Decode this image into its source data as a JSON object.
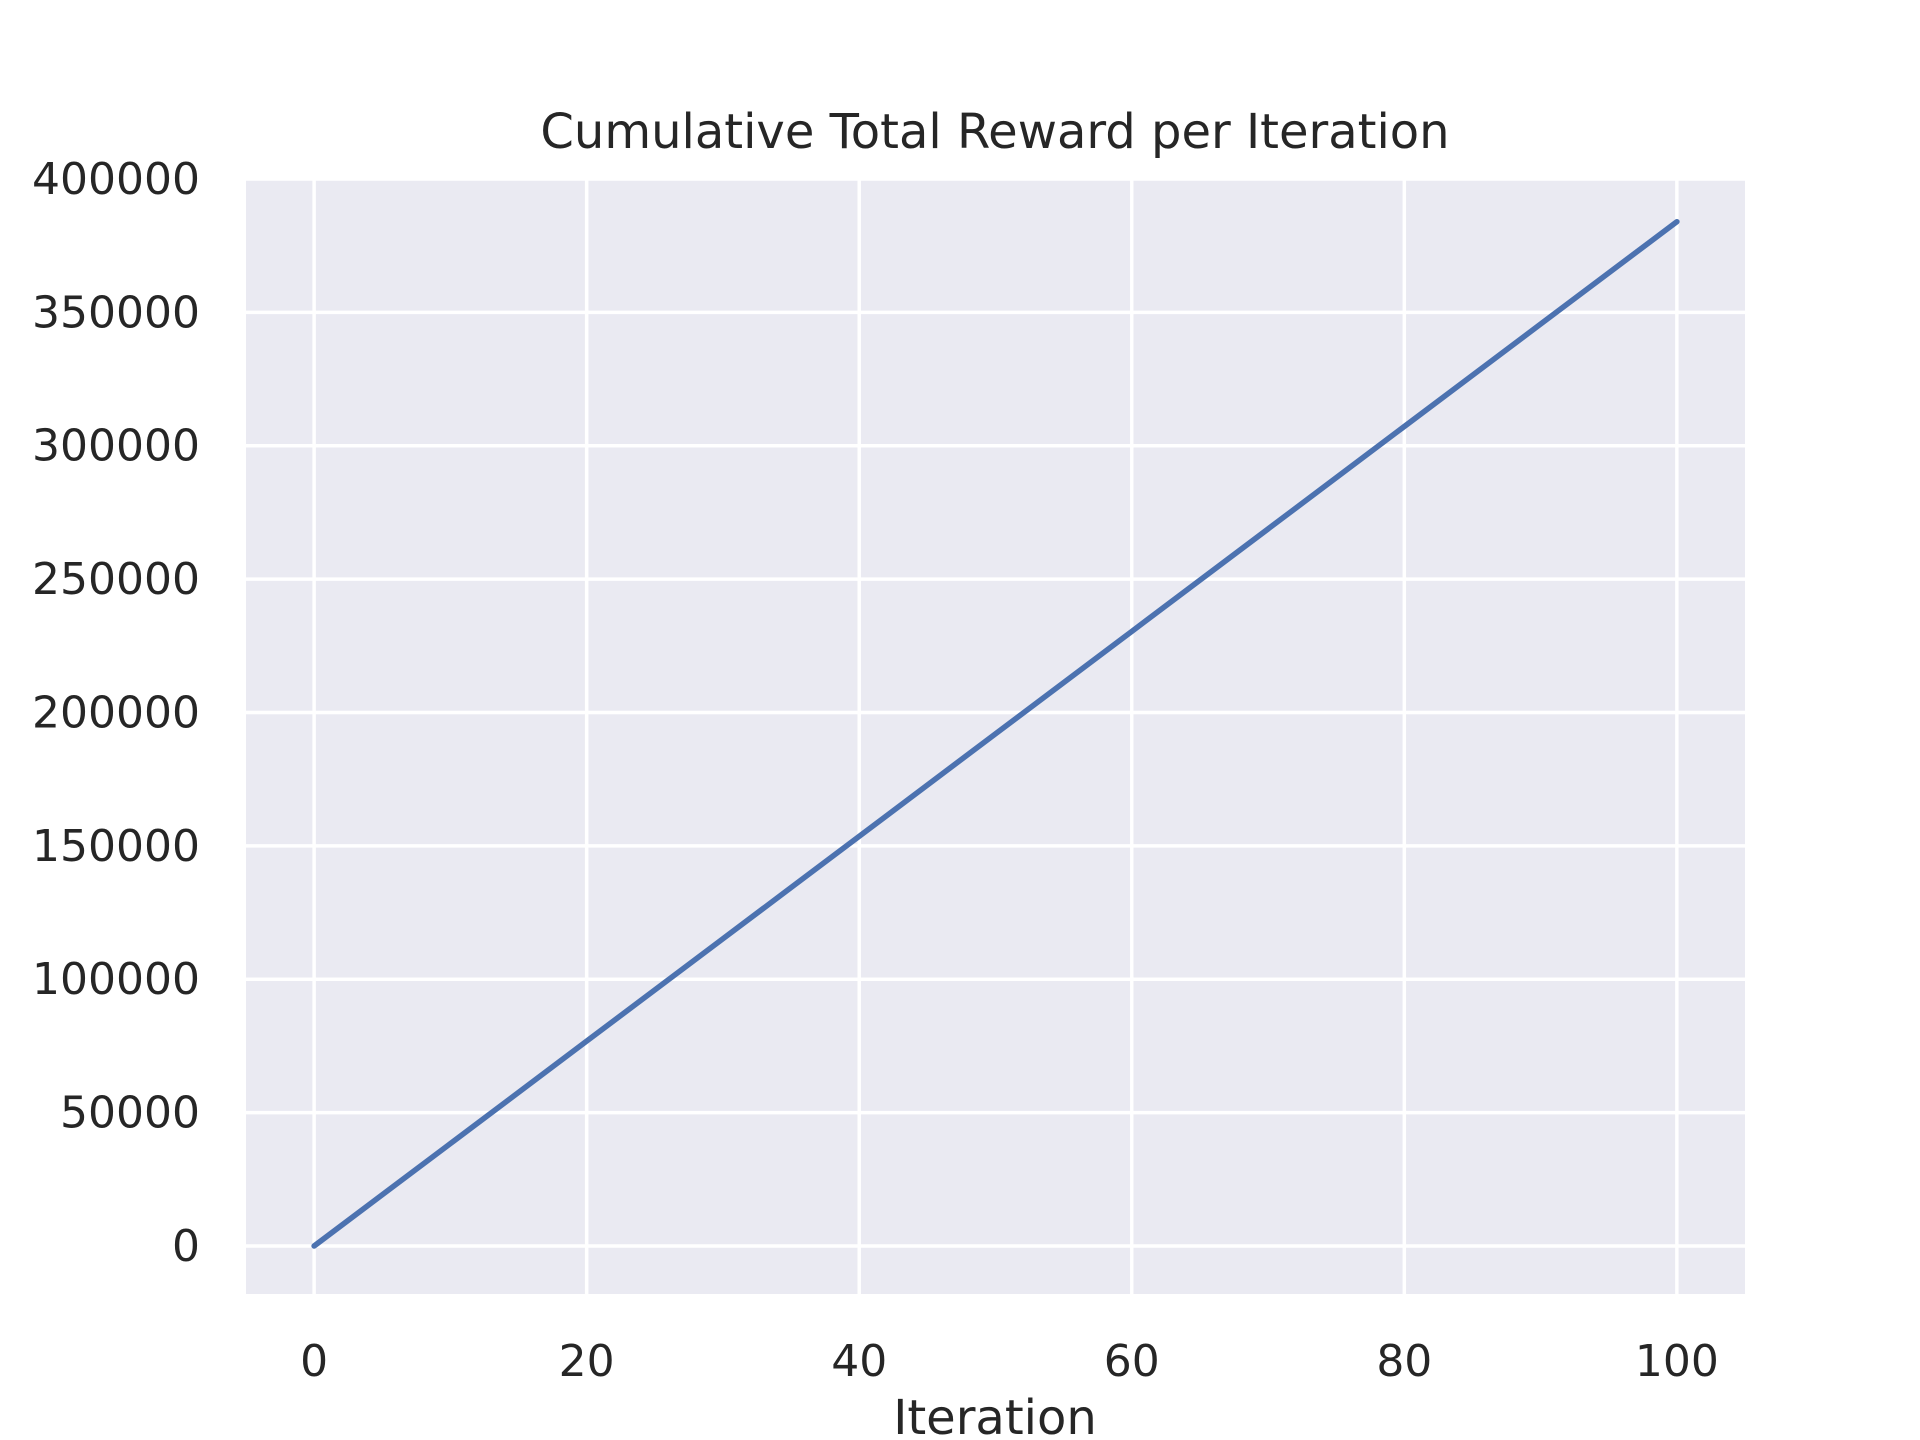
{
  "chart_data": {
    "type": "line",
    "title": "Cumulative Total Reward per Iteration",
    "xlabel": "Iteration",
    "ylabel": "",
    "xlim": [
      -5,
      105
    ],
    "ylim": [
      -18000,
      400000
    ],
    "x_ticks": [
      0,
      20,
      40,
      60,
      80,
      100
    ],
    "y_ticks": [
      0,
      50000,
      100000,
      150000,
      200000,
      250000,
      300000,
      350000,
      400000
    ],
    "grid": true,
    "legend": "none",
    "series": [
      {
        "color": "#4c72b0",
        "x": [
          0,
          10,
          20,
          30,
          40,
          50,
          60,
          70,
          80,
          90,
          100
        ],
        "y": [
          0,
          38400,
          76800,
          115200,
          153600,
          192000,
          230400,
          268800,
          307200,
          345600,
          384000
        ]
      }
    ]
  },
  "colors": {
    "plot_background": "#eaeaf2",
    "grid": "#ffffff",
    "text": "#262626"
  }
}
